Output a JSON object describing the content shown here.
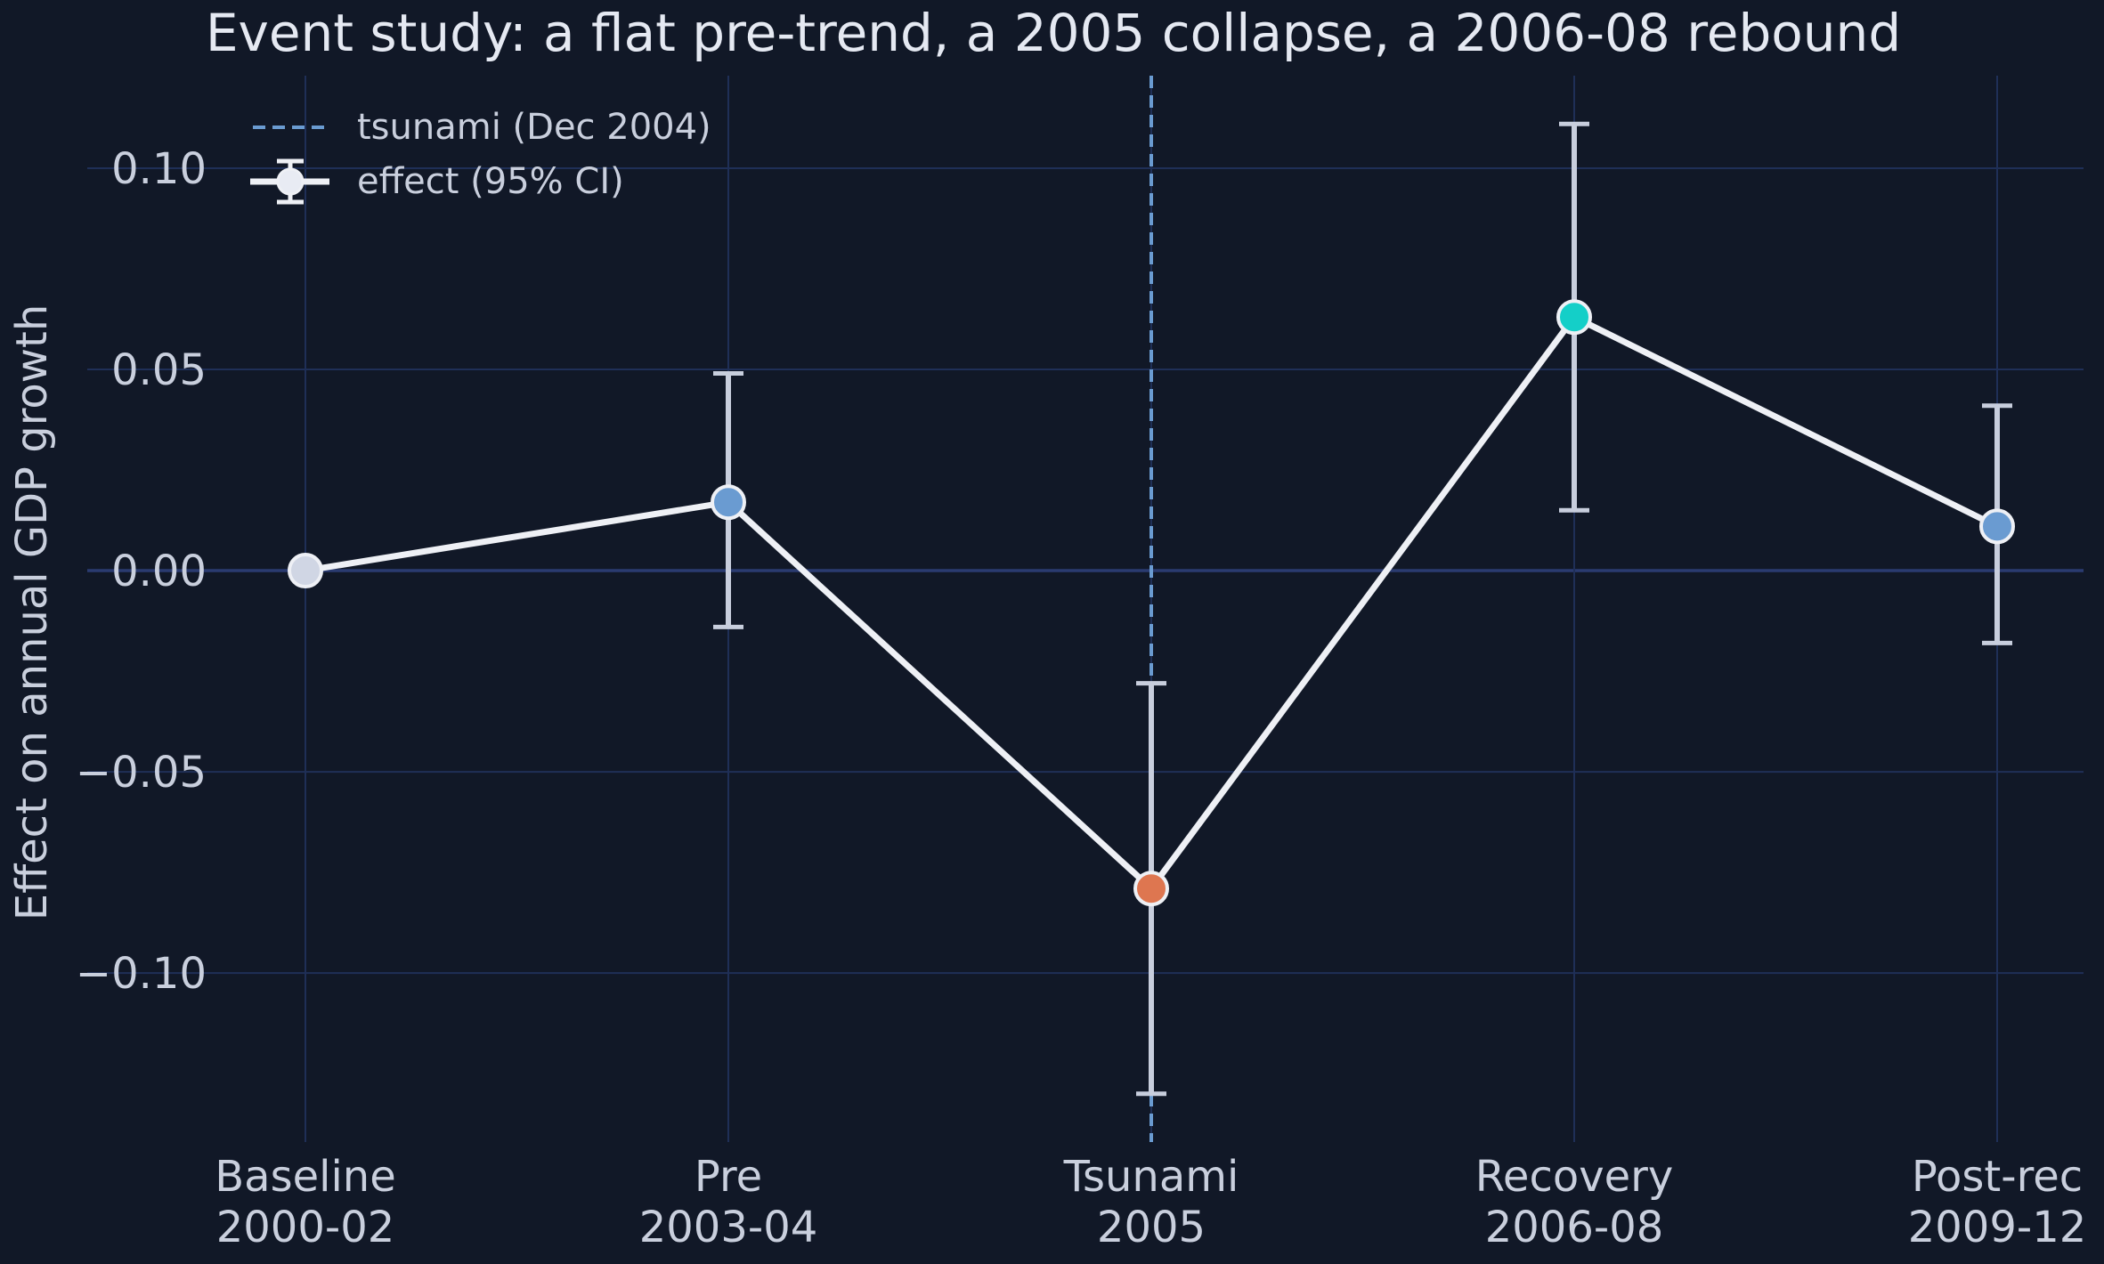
{
  "colors": {
    "background": "#111827",
    "grid": "#1f2f57",
    "zero_line": "#2a3b70",
    "line": "#eef0f5",
    "errorbar": "#c8cedd",
    "event_line": "#6a9bd1",
    "text": "#c9cfdd",
    "title": "#e5e9f2"
  },
  "chart_data": {
    "type": "line",
    "title": "Event study: a flat pre-trend, a 2005 collapse, a 2006-08 rebound",
    "ylabel": "Effect on annual GDP growth",
    "xlabel": "",
    "ylim": [
      -0.142,
      0.123
    ],
    "yticks": [
      0.1,
      0.05,
      0.0,
      -0.05,
      -0.1
    ],
    "ytick_labels": [
      "0.10",
      "0.05",
      "0.00",
      "−0.05",
      "−0.10"
    ],
    "grid": true,
    "legend_placement": "top-left",
    "categories": [
      {
        "name": "Baseline",
        "years": "2000-02"
      },
      {
        "name": "Pre",
        "years": "2003-04"
      },
      {
        "name": "Tsunami",
        "years": "2005"
      },
      {
        "name": "Recovery",
        "years": "2006-08"
      },
      {
        "name": "Post-rec",
        "years": "2009-12"
      }
    ],
    "series": [
      {
        "name": "effect (95% CI)",
        "values": [
          0.0,
          0.017,
          -0.079,
          0.063,
          0.011
        ],
        "ci_low": [
          null,
          -0.014,
          -0.13,
          0.015,
          -0.018
        ],
        "ci_high": [
          null,
          0.049,
          -0.028,
          0.111,
          0.041
        ],
        "point_colors": [
          "#d0d6e4",
          "#6a9bd1",
          "#de7650",
          "#14cfc8",
          "#6a9bd1"
        ]
      }
    ],
    "event_marker": {
      "label": "tsunami (Dec 2004)",
      "category": "Tsunami"
    }
  }
}
